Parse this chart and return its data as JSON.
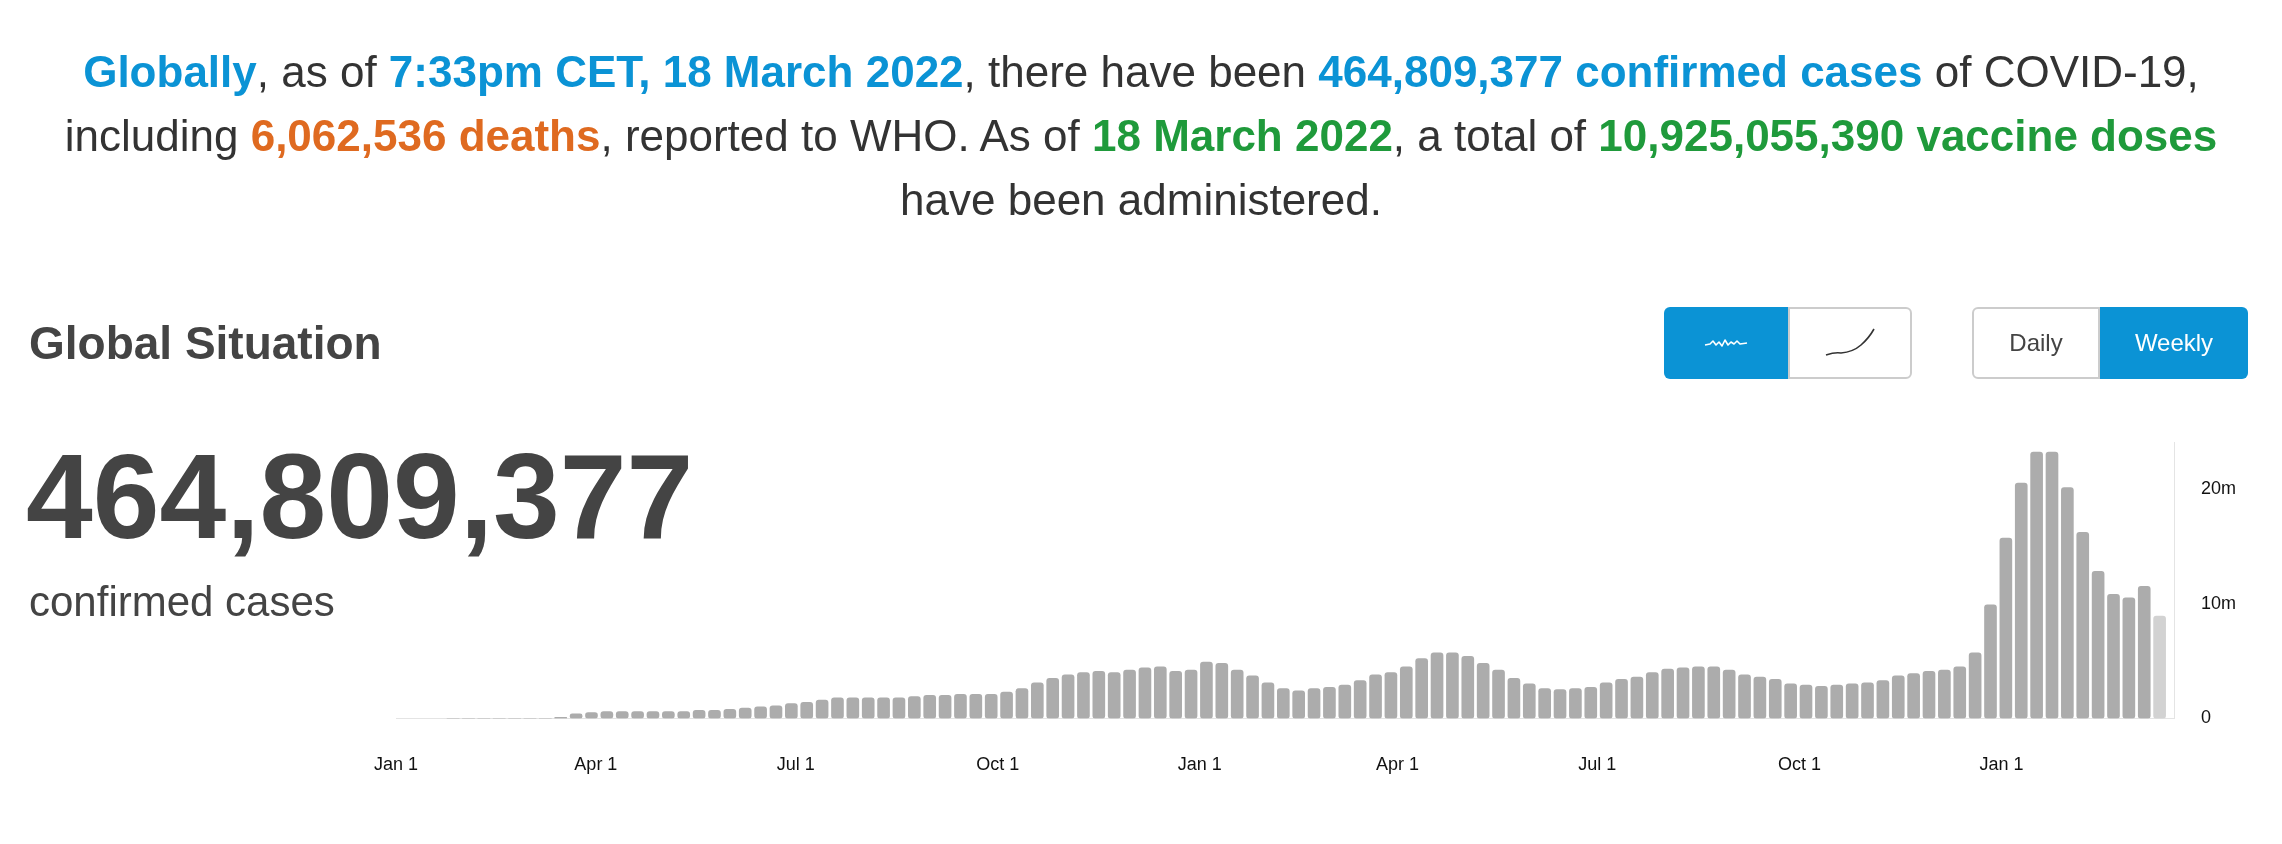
{
  "chart_data": {
    "type": "bar",
    "title": "Global Situation",
    "annotations": [
      "Globally",
      ", as of",
      "7:33pm CET, 18 March 2022",
      ", there have been",
      "464,809,377 confirmed cases",
      "of COVID-19, including",
      "6,062,536 deaths",
      ", reported to WHO. As of",
      "18 March 2022",
      ", a total of",
      "10,925,055,390 vaccine doses",
      "have been administered.",
      "464,809,377",
      "confirmed cases",
      "Daily",
      "Weekly"
    ],
    "x": [
      "2020-01-27",
      "2020-02-03",
      "2020-02-10",
      "2020-02-17",
      "2020-02-24",
      "2020-03-02",
      "2020-03-09",
      "2020-03-16",
      "2020-03-23",
      "2020-03-30",
      "2020-04-06",
      "2020-04-13",
      "2020-04-20",
      "2020-04-27",
      "2020-05-04",
      "2020-05-11",
      "2020-05-18",
      "2020-05-25",
      "2020-06-01",
      "2020-06-08",
      "2020-06-15",
      "2020-06-22",
      "2020-06-29",
      "2020-07-06",
      "2020-07-13",
      "2020-07-20",
      "2020-07-27",
      "2020-08-03",
      "2020-08-10",
      "2020-08-17",
      "2020-08-24",
      "2020-08-31",
      "2020-09-07",
      "2020-09-14",
      "2020-09-21",
      "2020-09-28",
      "2020-10-05",
      "2020-10-12",
      "2020-10-19",
      "2020-10-26",
      "2020-11-02",
      "2020-11-09",
      "2020-11-16",
      "2020-11-23",
      "2020-11-30",
      "2020-12-07",
      "2020-12-14",
      "2020-12-21",
      "2020-12-28",
      "2021-01-04",
      "2021-01-11",
      "2021-01-18",
      "2021-01-25",
      "2021-02-01",
      "2021-02-08",
      "2021-02-15",
      "2021-02-22",
      "2021-03-01",
      "2021-03-08",
      "2021-03-15",
      "2021-03-22",
      "2021-03-29",
      "2021-04-05",
      "2021-04-12",
      "2021-04-19",
      "2021-04-26",
      "2021-05-03",
      "2021-05-10",
      "2021-05-17",
      "2021-05-24",
      "2021-05-31",
      "2021-06-07",
      "2021-06-14",
      "2021-06-21",
      "2021-06-28",
      "2021-07-05",
      "2021-07-12",
      "2021-07-19",
      "2021-07-26",
      "2021-08-02",
      "2021-08-09",
      "2021-08-16",
      "2021-08-23",
      "2021-08-30",
      "2021-09-06",
      "2021-09-13",
      "2021-09-20",
      "2021-09-27",
      "2021-10-04",
      "2021-10-11",
      "2021-10-18",
      "2021-10-25",
      "2021-11-01",
      "2021-11-08",
      "2021-11-15",
      "2021-11-22",
      "2021-11-29",
      "2021-12-06",
      "2021-12-13",
      "2021-12-20",
      "2021-12-27",
      "2022-01-03",
      "2022-01-10",
      "2022-01-17",
      "2022-01-24",
      "2022-01-31",
      "2022-02-07",
      "2022-02-14",
      "2022-02-21",
      "2022-02-28",
      "2022-03-07",
      "2022-03-14"
    ],
    "values": [
      0,
      0,
      0,
      0,
      0,
      0,
      0,
      0.1,
      0.4,
      0.5,
      0.6,
      0.6,
      0.6,
      0.6,
      0.6,
      0.6,
      0.7,
      0.7,
      0.8,
      0.9,
      1.0,
      1.1,
      1.3,
      1.4,
      1.6,
      1.8,
      1.8,
      1.8,
      1.8,
      1.8,
      1.9,
      2.0,
      2.0,
      2.1,
      2.1,
      2.1,
      2.3,
      2.6,
      3.1,
      3.5,
      3.8,
      4.0,
      4.1,
      4.0,
      4.2,
      4.4,
      4.5,
      4.1,
      4.2,
      4.9,
      4.8,
      4.2,
      3.7,
      3.1,
      2.6,
      2.4,
      2.6,
      2.7,
      2.9,
      3.3,
      3.8,
      4.0,
      4.5,
      5.2,
      5.7,
      5.7,
      5.4,
      4.8,
      4.2,
      3.5,
      3.0,
      2.6,
      2.5,
      2.6,
      2.7,
      3.1,
      3.4,
      3.6,
      4.0,
      4.3,
      4.4,
      4.5,
      4.5,
      4.2,
      3.8,
      3.6,
      3.4,
      3.0,
      2.9,
      2.8,
      2.9,
      3.0,
      3.1,
      3.3,
      3.7,
      3.9,
      4.1,
      4.2,
      4.5,
      5.7,
      9.9,
      15.7,
      20.5,
      23.2,
      23.2,
      20.1,
      16.2,
      12.8,
      10.8,
      10.5,
      11.5,
      8.9
    ],
    "colors": [
      "#acacac",
      "#acacac",
      "#acacac",
      "#acacac",
      "#acacac",
      "#acacac",
      "#acacac",
      "#acacac",
      "#acacac",
      "#acacac",
      "#acacac",
      "#acacac",
      "#acacac",
      "#acacac",
      "#acacac",
      "#acacac",
      "#acacac",
      "#acacac",
      "#acacac",
      "#acacac",
      "#acacac",
      "#acacac",
      "#acacac",
      "#acacac",
      "#acacac",
      "#acacac",
      "#acacac",
      "#acacac",
      "#acacac",
      "#acacac",
      "#acacac",
      "#acacac",
      "#acacac",
      "#acacac",
      "#acacac",
      "#acacac",
      "#acacac",
      "#acacac",
      "#acacac",
      "#acacac",
      "#acacac",
      "#acacac",
      "#acacac",
      "#acacac",
      "#acacac",
      "#acacac",
      "#acacac",
      "#acacac",
      "#acacac",
      "#acacac",
      "#acacac",
      "#acacac",
      "#acacac",
      "#acacac",
      "#acacac",
      "#acacac",
      "#acacac",
      "#acacac",
      "#acacac",
      "#acacac",
      "#acacac",
      "#acacac",
      "#acacac",
      "#acacac",
      "#acacac",
      "#acacac",
      "#acacac",
      "#acacac",
      "#acacac",
      "#acacac",
      "#acacac",
      "#acacac",
      "#acacac",
      "#acacac",
      "#acacac",
      "#acacac",
      "#acacac",
      "#acacac",
      "#acacac",
      "#acacac",
      "#acacac",
      "#acacac",
      "#acacac",
      "#acacac",
      "#acacac",
      "#acacac",
      "#acacac",
      "#acacac",
      "#acacac",
      "#acacac",
      "#acacac",
      "#acacac",
      "#acacac",
      "#acacac",
      "#acacac",
      "#acacac",
      "#acacac",
      "#acacac",
      "#acacac",
      "#acacac",
      "#acacac",
      "#acacac",
      "#acacac",
      "#acacac",
      "#acacac",
      "#acacac",
      "#acacac",
      "#acacac",
      "#acacac",
      "#acacac",
      "#acacac",
      "#d2d2d2"
    ],
    "xlim": [
      "2020-01-01",
      "2022-03-21"
    ],
    "xticks": [
      {
        "value": "2020-01-01",
        "label": "Jan 1"
      },
      {
        "value": "2020-04-01",
        "label": "Apr 1"
      },
      {
        "value": "2020-07-01",
        "label": "Jul 1"
      },
      {
        "value": "2020-10-01",
        "label": "Oct 1"
      },
      {
        "value": "2021-01-01",
        "label": "Jan 1"
      },
      {
        "value": "2021-04-01",
        "label": "Apr 1"
      },
      {
        "value": "2021-07-01",
        "label": "Jul 1"
      },
      {
        "value": "2021-10-01",
        "label": "Oct 1"
      },
      {
        "value": "2022-01-01",
        "label": "Jan 1"
      }
    ],
    "ylim": [
      0,
      24
    ],
    "yticks": [
      0,
      {
        "value": 10,
        "label": "10m"
      },
      {
        "value": 20,
        "label": "20m"
      }
    ]
  }
}
